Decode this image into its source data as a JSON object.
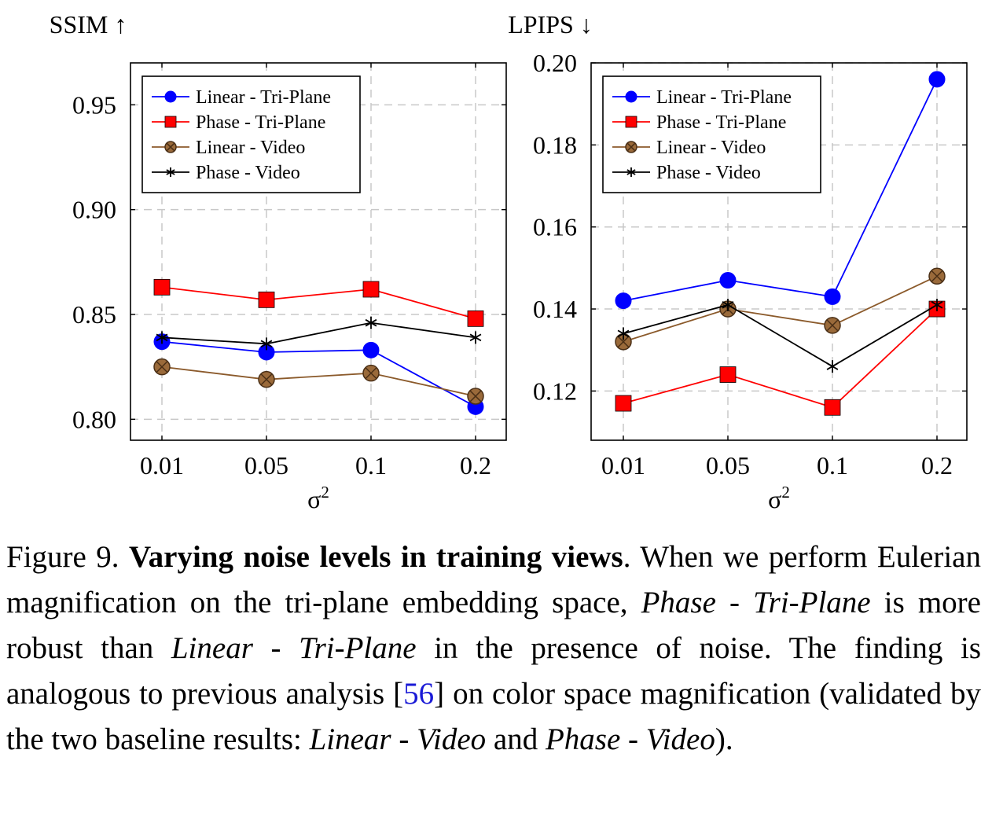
{
  "chart_data": [
    {
      "type": "line",
      "title": "SSIM ↑",
      "xlabel": "σ²",
      "categories": [
        "0.01",
        "0.05",
        "0.1",
        "0.2"
      ],
      "ylim": [
        0.79,
        0.97
      ],
      "yticks": [
        "0.80",
        "0.85",
        "0.90",
        "0.95"
      ],
      "ytick_values": [
        0.8,
        0.85,
        0.9,
        0.95
      ],
      "grid": true,
      "legend": "top-left",
      "series": [
        {
          "name": "Linear - Tri-Plane",
          "values": [
            0.837,
            0.832,
            0.833,
            0.806
          ],
          "color": "#0000ff",
          "marker": "circle"
        },
        {
          "name": "Phase - Tri-Plane",
          "values": [
            0.863,
            0.857,
            0.862,
            0.848
          ],
          "color": "#ff0000",
          "marker": "square"
        },
        {
          "name": "Linear - Video",
          "values": [
            0.825,
            0.819,
            0.822,
            0.811
          ],
          "color": "#8b5a2b",
          "marker": "otimes"
        },
        {
          "name": "Phase - Video",
          "values": [
            0.839,
            0.836,
            0.846,
            0.839
          ],
          "color": "#000000",
          "marker": "star"
        }
      ]
    },
    {
      "type": "line",
      "title": "LPIPS ↓",
      "xlabel": "σ²",
      "categories": [
        "0.01",
        "0.05",
        "0.1",
        "0.2"
      ],
      "ylim": [
        0.108,
        0.2
      ],
      "yticks": [
        "0.12",
        "0.14",
        "0.16",
        "0.18",
        "0.20"
      ],
      "ytick_values": [
        0.12,
        0.14,
        0.16,
        0.18,
        0.2
      ],
      "grid": true,
      "legend": "top-left",
      "series": [
        {
          "name": "Linear - Tri-Plane",
          "values": [
            0.142,
            0.147,
            0.143,
            0.196
          ],
          "color": "#0000ff",
          "marker": "circle"
        },
        {
          "name": "Phase - Tri-Plane",
          "values": [
            0.117,
            0.124,
            0.116,
            0.14
          ],
          "color": "#ff0000",
          "marker": "square"
        },
        {
          "name": "Linear - Video",
          "values": [
            0.132,
            0.14,
            0.136,
            0.148
          ],
          "color": "#8b5a2b",
          "marker": "otimes"
        },
        {
          "name": "Phase - Video",
          "values": [
            0.134,
            0.141,
            0.126,
            0.141
          ],
          "color": "#000000",
          "marker": "star"
        }
      ]
    }
  ],
  "caption": {
    "label": "Figure 9. ",
    "bold": "Varying noise levels in training views",
    "t1": ". When we perform Eulerian magnification on the tri-plane embedding space, ",
    "i1": "Phase - Tri-Plane",
    "t2": " is more robust than ",
    "i2": "Linear - Tri-Plane",
    "t3": " in the presence of noise. The finding is analogous to previous analysis [",
    "cite": "56",
    "t4": "] on color space magnification (validated by the two baseline results: ",
    "i3": "Linear - Video",
    "t5": " and ",
    "i4": "Phase - Video",
    "t6": ")."
  }
}
